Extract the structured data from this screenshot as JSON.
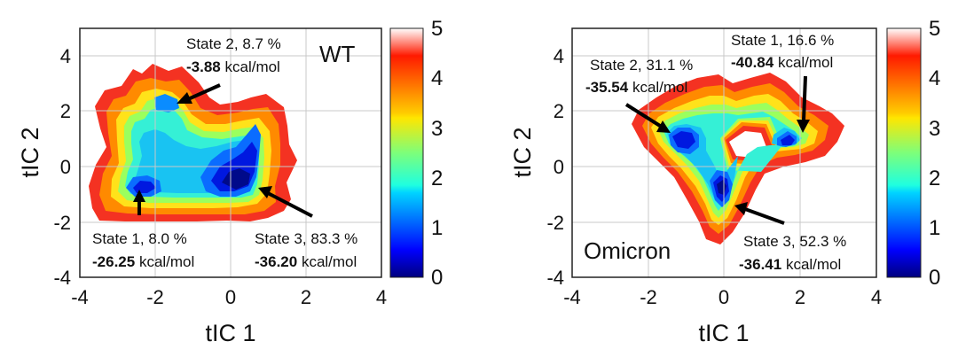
{
  "chart_data": [
    {
      "type": "heatmap",
      "panel": "left",
      "variant_label": "WT",
      "xlabel": "tIC 1",
      "ylabel": "tIC 2",
      "xlim": [
        -4,
        4
      ],
      "ylim": [
        -4,
        5
      ],
      "x_ticks": [
        "-4",
        "-2",
        "0",
        "2",
        "4"
      ],
      "y_ticks": [
        "-4",
        "-2",
        "0",
        "2",
        "4"
      ],
      "grid": true,
      "colorbar": {
        "range": [
          0,
          5
        ],
        "ticks": [
          "0",
          "1",
          "2",
          "3",
          "4",
          "5"
        ],
        "colormap": "jet"
      },
      "states": [
        {
          "name": "State 2",
          "population_pct": "8.7 %",
          "energy": "-3.88",
          "unit": "kcal/mol",
          "x": -1.2,
          "y": 2.3
        },
        {
          "name": "State 1",
          "population_pct": "8.0 %",
          "energy": "-26.25",
          "unit": "kcal/mol",
          "x": -2.4,
          "y": -0.9
        },
        {
          "name": "State 3",
          "population_pct": "83.3 %",
          "energy": "-36.20",
          "unit": "kcal/mol",
          "x": 0.3,
          "y": -1.0
        }
      ]
    },
    {
      "type": "heatmap",
      "panel": "right",
      "variant_label": "Omicron",
      "xlabel": "tIC 1",
      "ylabel": "tIC 2",
      "xlim": [
        -4,
        4
      ],
      "ylim": [
        -4,
        5
      ],
      "x_ticks": [
        "-4",
        "-2",
        "0",
        "2",
        "4"
      ],
      "y_ticks": [
        "-4",
        "-2",
        "0",
        "2",
        "4"
      ],
      "grid": true,
      "colorbar": {
        "range": [
          0,
          5
        ],
        "ticks": [
          "0",
          "1",
          "2",
          "3",
          "4",
          "5"
        ],
        "colormap": "jet"
      },
      "states": [
        {
          "name": "State 2",
          "population_pct": "31.1 %",
          "energy": "-35.54",
          "unit": "kcal/mol",
          "x": -1.3,
          "y": 0.8
        },
        {
          "name": "State 1",
          "population_pct": "16.6 %",
          "energy": "-40.84",
          "unit": "kcal/mol",
          "x": 2.0,
          "y": 0.8
        },
        {
          "name": "State 3",
          "population_pct": "52.3 %",
          "energy": "-36.41",
          "unit": "kcal/mol",
          "x": -0.1,
          "y": -1.2
        }
      ]
    }
  ]
}
